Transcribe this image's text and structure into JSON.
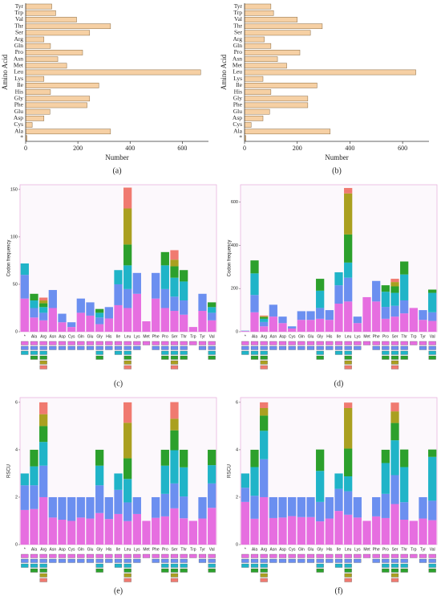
{
  "chart_data": [
    {
      "type": "hbar",
      "label": "(a)",
      "xlabel": "Number",
      "ylabel": "Amino Acid",
      "color": "#f6d0a4",
      "categories": [
        "Tyr",
        "Trp",
        "Val",
        "Thr",
        "Ser",
        "Arg",
        "Gln",
        "Pro",
        "Asn",
        "Met",
        "Leu",
        "Lys",
        "Ile",
        "His",
        "Gly",
        "Phe",
        "Glu",
        "Asp",
        "Cys",
        "Ala",
        "*"
      ],
      "values": [
        100,
        115,
        195,
        325,
        245,
        70,
        95,
        218,
        123,
        157,
        670,
        70,
        280,
        95,
        245,
        235,
        93,
        70,
        25,
        325,
        5
      ],
      "xlim": [
        0,
        700
      ],
      "xticks": [
        0,
        200,
        400,
        600
      ]
    },
    {
      "type": "hbar",
      "label": "(b)",
      "xlabel": "Number",
      "ylabel": "Amino Acid",
      "color": "#f6d0a4",
      "categories": [
        "Tyr",
        "Trp",
        "Val",
        "Thr",
        "Ser",
        "Arg",
        "Gln",
        "Pro",
        "Asn",
        "Met",
        "Leu",
        "Lys",
        "Ile",
        "His",
        "Gly",
        "Phe",
        "Glu",
        "Asp",
        "Cys",
        "Ala",
        "*"
      ],
      "values": [
        100,
        110,
        200,
        295,
        250,
        75,
        100,
        210,
        125,
        160,
        650,
        70,
        275,
        100,
        240,
        240,
        95,
        70,
        25,
        325,
        5
      ],
      "xlim": [
        0,
        700
      ],
      "xticks": [
        0,
        200,
        400,
        600
      ]
    },
    {
      "type": "stacked",
      "label": "(c)",
      "ylabel": "Codon frequency",
      "categories": [
        "*",
        "Ala",
        "Arg",
        "Asn",
        "Asp",
        "Cys",
        "Gln",
        "Glu",
        "Gly",
        "His",
        "Ile",
        "Leu",
        "Lys",
        "Met",
        "Phe",
        "Pro",
        "Ser",
        "Thr",
        "Trp",
        "Tyr",
        "Val"
      ],
      "ylim": [
        0,
        155
      ],
      "yticks": [
        0,
        50,
        100,
        150
      ],
      "series": [
        {
          "color": "#e66ee0",
          "values": [
            35,
            15,
            12,
            25,
            10,
            5,
            20,
            17,
            8,
            14,
            28,
            25,
            40,
            11,
            35,
            25,
            22,
            18,
            5,
            22,
            12
          ]
        },
        {
          "color": "#6b8ff0",
          "values": [
            25,
            10,
            8,
            19,
            9,
            5,
            15,
            14,
            7,
            12,
            22,
            20,
            22,
            null,
            27,
            20,
            15,
            15,
            null,
            18,
            8
          ]
        },
        {
          "color": "#20b4c8",
          "values": [
            12,
            8,
            6,
            null,
            null,
            null,
            null,
            null,
            5,
            null,
            15,
            25,
            null,
            null,
            null,
            25,
            20,
            20,
            null,
            null,
            6
          ]
        },
        {
          "color": "#2ca02c",
          "values": [
            null,
            7,
            4,
            null,
            null,
            null,
            null,
            null,
            4,
            null,
            null,
            22,
            null,
            null,
            null,
            14,
            12,
            12,
            null,
            null,
            5
          ]
        },
        {
          "color": "#aaa020",
          "values": [
            null,
            null,
            3,
            null,
            null,
            null,
            null,
            null,
            null,
            null,
            null,
            38,
            null,
            null,
            null,
            null,
            7,
            null,
            null,
            null,
            null
          ]
        },
        {
          "color": "#f07a70",
          "values": [
            null,
            null,
            3,
            null,
            null,
            null,
            null,
            null,
            null,
            null,
            null,
            22,
            null,
            null,
            null,
            null,
            10,
            null,
            null,
            null,
            null
          ]
        }
      ]
    },
    {
      "type": "stacked",
      "label": "(d)",
      "ylabel": "Codon frequency",
      "categories": [
        "*",
        "Ala",
        "Arg",
        "Asn",
        "Asp",
        "Cys",
        "Gln",
        "Glu",
        "Gly",
        "His",
        "Ile",
        "Leu",
        "Lys",
        "Met",
        "Phe",
        "Pro",
        "Ser",
        "Thr",
        "Trp",
        "Tyr",
        "Val"
      ],
      "ylim": [
        0,
        680
      ],
      "yticks": [
        0,
        200,
        400,
        600
      ],
      "series": [
        {
          "color": "#e66ee0",
          "values": [
            3,
            90,
            25,
            70,
            40,
            15,
            55,
            55,
            60,
            55,
            130,
            140,
            40,
            160,
            140,
            60,
            70,
            85,
            110,
            55,
            50
          ]
        },
        {
          "color": "#6b8ff0",
          "values": [
            1,
            80,
            20,
            55,
            30,
            10,
            40,
            40,
            50,
            45,
            85,
            110,
            30,
            null,
            95,
            55,
            50,
            60,
            null,
            45,
            40
          ]
        },
        {
          "color": "#20b4c8",
          "values": [
            1,
            100,
            15,
            null,
            null,
            null,
            null,
            null,
            80,
            null,
            60,
            70,
            null,
            null,
            null,
            70,
            60,
            120,
            null,
            null,
            90
          ]
        },
        {
          "color": "#2ca02c",
          "values": [
            null,
            60,
            8,
            null,
            null,
            null,
            null,
            null,
            55,
            null,
            null,
            130,
            null,
            null,
            null,
            30,
            30,
            60,
            null,
            null,
            15
          ]
        },
        {
          "color": "#aaa020",
          "values": [
            null,
            null,
            4,
            null,
            null,
            null,
            null,
            null,
            null,
            null,
            null,
            190,
            null,
            null,
            null,
            null,
            20,
            null,
            null,
            null,
            null
          ]
        },
        {
          "color": "#f07a70",
          "values": [
            null,
            null,
            3,
            null,
            null,
            null,
            null,
            null,
            null,
            null,
            null,
            25,
            null,
            null,
            null,
            null,
            15,
            null,
            null,
            null,
            null
          ]
        }
      ]
    },
    {
      "type": "stacked",
      "label": "(e)",
      "ylabel": "RSCU",
      "categories": [
        "*",
        "Ala",
        "Arg",
        "Asn",
        "Asp",
        "Cys",
        "Gln",
        "Glu",
        "Gly",
        "His",
        "Ile",
        "Leu",
        "Lys",
        "Met",
        "Phe",
        "Pro",
        "Ser",
        "Thr",
        "Trp",
        "Tyr",
        "Val"
      ],
      "ylim": [
        0,
        6.2
      ],
      "yticks": [
        0,
        2,
        4,
        6
      ],
      "series": [
        {
          "color": "#e66ee0",
          "values": [
            1.46,
            1.5,
            2.0,
            1.14,
            1.05,
            1.0,
            1.14,
            1.1,
            1.33,
            1.08,
            1.29,
            0.99,
            1.29,
            1,
            1.13,
            1.19,
            1.53,
            1.11,
            1,
            1.1,
            1.55
          ]
        },
        {
          "color": "#6b8ff0",
          "values": [
            1.04,
            1.0,
            1.33,
            0.86,
            0.95,
            1.0,
            0.86,
            0.9,
            1.17,
            0.92,
            1.02,
            0.79,
            0.71,
            null,
            0.87,
            0.95,
            1.05,
            0.92,
            null,
            0.9,
            1.03
          ]
        },
        {
          "color": "#20b4c8",
          "values": [
            0.5,
            0.8,
            1.0,
            null,
            null,
            null,
            null,
            null,
            0.83,
            null,
            0.69,
            0.99,
            null,
            null,
            null,
            1.19,
            1.4,
            1.23,
            null,
            null,
            0.77
          ]
        },
        {
          "color": "#2ca02c",
          "values": [
            null,
            0.7,
            0.67,
            null,
            null,
            null,
            null,
            null,
            0.67,
            null,
            null,
            0.87,
            null,
            null,
            null,
            0.67,
            0.84,
            0.74,
            null,
            null,
            0.65
          ]
        },
        {
          "color": "#aaa020",
          "values": [
            null,
            null,
            0.5,
            null,
            null,
            null,
            null,
            null,
            null,
            null,
            null,
            1.5,
            null,
            null,
            null,
            null,
            0.49,
            null,
            null,
            null,
            null
          ]
        },
        {
          "color": "#f07a70",
          "values": [
            null,
            null,
            0.5,
            null,
            null,
            null,
            null,
            null,
            null,
            null,
            null,
            0.86,
            null,
            null,
            null,
            null,
            0.7,
            null,
            null,
            null,
            null
          ]
        }
      ]
    },
    {
      "type": "stacked",
      "label": "(f)",
      "ylabel": "RSCU",
      "categories": [
        "*",
        "Ala",
        "Arg",
        "Asn",
        "Asp",
        "Cys",
        "Gln",
        "Glu",
        "Gly",
        "His",
        "Ile",
        "Leu",
        "Lys",
        "Met",
        "Phe",
        "Pro",
        "Ser",
        "Thr",
        "Trp",
        "Tyr",
        "Val"
      ],
      "ylim": [
        0,
        6.2
      ],
      "yticks": [
        0,
        2,
        4,
        6
      ],
      "series": [
        {
          "color": "#e66ee0",
          "values": [
            1.8,
            1.09,
            2.0,
            1.12,
            1.14,
            1.2,
            1.16,
            1.16,
            0.98,
            1.1,
            1.42,
            1.26,
            1.14,
            1,
            1.19,
            1.12,
            1.71,
            1.05,
            1,
            1.1,
            1.03
          ]
        },
        {
          "color": "#6b8ff0",
          "values": [
            0.6,
            0.97,
            1.6,
            0.88,
            0.86,
            0.8,
            0.84,
            0.84,
            0.82,
            0.9,
            0.93,
            0.99,
            0.86,
            null,
            0.81,
            1.02,
            1.22,
            0.74,
            null,
            0.9,
            0.82
          ]
        },
        {
          "color": "#20b4c8",
          "values": [
            0.6,
            1.21,
            1.2,
            null,
            null,
            null,
            null,
            null,
            1.31,
            null,
            0.65,
            0.63,
            null,
            null,
            null,
            1.3,
            1.47,
            1.48,
            null,
            null,
            1.85
          ]
        },
        {
          "color": "#2ca02c",
          "values": [
            null,
            0.73,
            0.64,
            null,
            null,
            null,
            null,
            null,
            0.9,
            null,
            null,
            1.17,
            null,
            null,
            null,
            0.56,
            0.73,
            0.74,
            null,
            null,
            0.31
          ]
        },
        {
          "color": "#aaa020",
          "values": [
            null,
            null,
            0.32,
            null,
            null,
            null,
            null,
            null,
            null,
            null,
            null,
            1.71,
            null,
            null,
            null,
            null,
            0.49,
            null,
            null,
            null,
            null
          ]
        },
        {
          "color": "#f07a70",
          "values": [
            null,
            null,
            0.24,
            null,
            null,
            null,
            null,
            null,
            null,
            null,
            null,
            0.23,
            null,
            null,
            null,
            null,
            0.37,
            null,
            null,
            null,
            null
          ]
        }
      ]
    }
  ]
}
